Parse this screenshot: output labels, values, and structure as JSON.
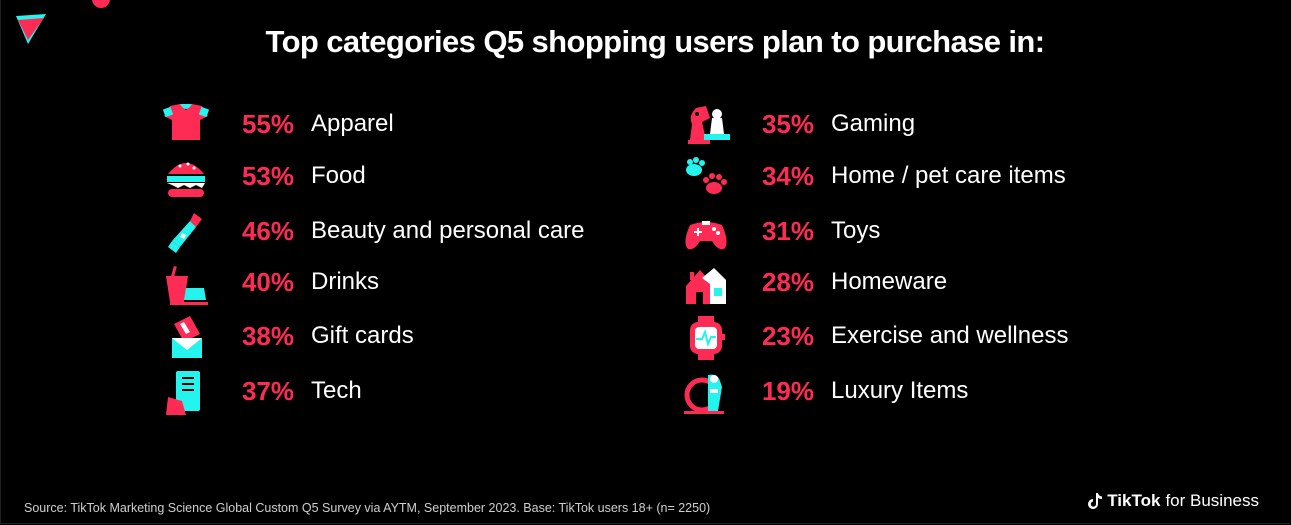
{
  "chart_data": {
    "type": "bar",
    "title": "Top categories Q5 shopping users plan to purchase in:",
    "unit": "%",
    "categories": [
      "Apparel",
      "Food",
      "Beauty and personal care",
      "Drinks",
      "Gift cards",
      "Tech",
      "Gaming",
      "Home / pet care items",
      "Toys",
      "Homeware",
      "Exercise and wellness",
      "Luxury Items"
    ],
    "values": [
      55,
      53,
      46,
      40,
      38,
      37,
      35,
      34,
      31,
      28,
      23,
      19
    ],
    "left_column": [
      {
        "pct": "55%",
        "label": "Apparel",
        "icon": "shirt-icon"
      },
      {
        "pct": "53%",
        "label": "Food",
        "icon": "burger-icon"
      },
      {
        "pct": "46%",
        "label": "Beauty and personal care",
        "icon": "lipstick-icon"
      },
      {
        "pct": "40%",
        "label": "Drinks",
        "icon": "drink-icon"
      },
      {
        "pct": "38%",
        "label": "Gift cards",
        "icon": "gift-card-icon"
      },
      {
        "pct": "37%",
        "label": "Tech",
        "icon": "phone-icon"
      }
    ],
    "right_column": [
      {
        "pct": "35%",
        "label": "Gaming",
        "icon": "chess-icon"
      },
      {
        "pct": "34%",
        "label": "Home / pet care items",
        "icon": "paw-icon"
      },
      {
        "pct": "31%",
        "label": "Toys",
        "icon": "gamepad-icon"
      },
      {
        "pct": "28%",
        "label": "Homeware",
        "icon": "house-icon"
      },
      {
        "pct": "23%",
        "label": "Exercise and wellness",
        "icon": "smartwatch-icon"
      },
      {
        "pct": "19%",
        "label": "Luxury Items",
        "icon": "ring-icon"
      }
    ]
  },
  "footer": {
    "source": "Source: TikTok Marketing Science Global Custom Q5 Survey via AYTM, September 2023. Base: TikTok users 18+ (n= 2250)",
    "brand_name": "TikTok",
    "brand_suffix": "for Business"
  },
  "colors": {
    "accent": "#fe2c55",
    "teal": "#25f4ee",
    "background": "#000000"
  }
}
